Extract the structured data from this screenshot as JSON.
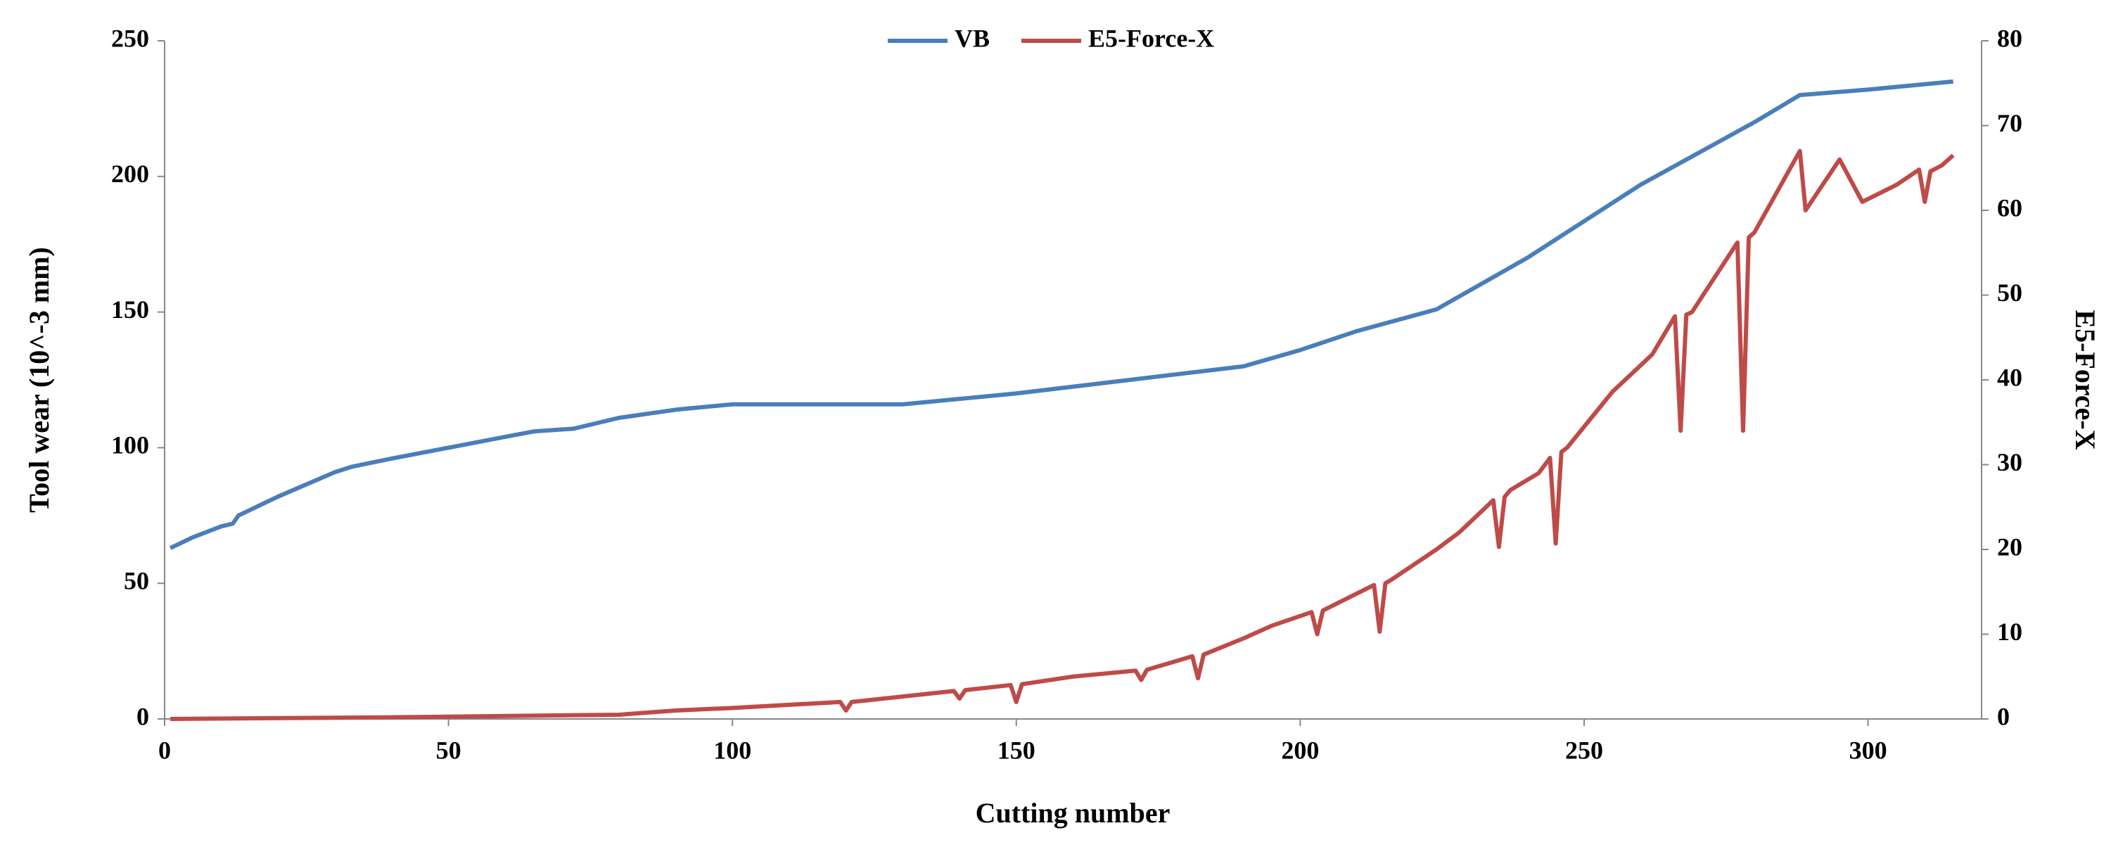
{
  "chart_data": {
    "type": "line",
    "xlabel": "Cutting number",
    "ylabel": "Tool wear (10^-3 mm)",
    "y2label": "E5-Force-X",
    "xlim": [
      0,
      320
    ],
    "xticks": [
      0,
      50,
      100,
      150,
      200,
      250,
      300
    ],
    "ylim": [
      0,
      250
    ],
    "yticks": [
      0,
      50,
      100,
      150,
      200,
      250
    ],
    "y2lim": [
      0,
      80
    ],
    "y2ticks": [
      0,
      10,
      20,
      30,
      40,
      50,
      60,
      70,
      80
    ],
    "legend": "top",
    "series": [
      {
        "name": "VB",
        "color": "#4a7ebb",
        "axis": "y",
        "x": [
          1,
          5,
          10,
          12,
          13,
          20,
          30,
          33,
          40,
          50,
          60,
          65,
          72,
          80,
          90,
          100,
          130,
          150,
          170,
          190,
          200,
          210,
          224,
          240,
          260,
          280,
          288,
          300,
          315
        ],
        "values": [
          63,
          67,
          71,
          72,
          75,
          82,
          91,
          93,
          96,
          100,
          104,
          106,
          107,
          111,
          114,
          116,
          116,
          120,
          125,
          130,
          136,
          143,
          151,
          170,
          197,
          220,
          230,
          232,
          235
        ]
      },
      {
        "name": "E5-Force-X",
        "color": "#be4b48",
        "axis": "y2",
        "x": [
          1,
          40,
          80,
          90,
          100,
          119,
          120,
          121,
          139,
          140,
          141,
          149,
          150,
          151,
          160,
          171,
          172,
          173,
          181,
          182,
          183,
          190,
          195,
          202,
          203,
          204,
          213,
          214,
          215,
          216,
          224,
          228,
          234,
          235,
          236,
          237,
          242,
          244,
          245,
          246,
          247,
          255,
          262,
          266,
          267,
          268,
          269,
          277,
          278,
          279,
          280,
          288,
          289,
          295,
          299,
          305,
          309,
          310,
          311,
          313,
          315
        ],
        "values": [
          0,
          0.2,
          0.5,
          1,
          1.3,
          2,
          1,
          2,
          3.3,
          2.4,
          3.4,
          4,
          2,
          4.1,
          5,
          5.7,
          4.6,
          5.8,
          7.4,
          4.8,
          7.6,
          9.5,
          11,
          12.6,
          10,
          12.8,
          15.8,
          10.3,
          16,
          16.4,
          20,
          22,
          25.8,
          20.3,
          26.2,
          27,
          29,
          30.8,
          20.7,
          31.5,
          32,
          38.6,
          43,
          47.5,
          34,
          47.7,
          48,
          56.2,
          34,
          56.8,
          57.4,
          67,
          60,
          66,
          61,
          63,
          64.8,
          61,
          64.6,
          65.3,
          66.5
        ]
      }
    ]
  }
}
